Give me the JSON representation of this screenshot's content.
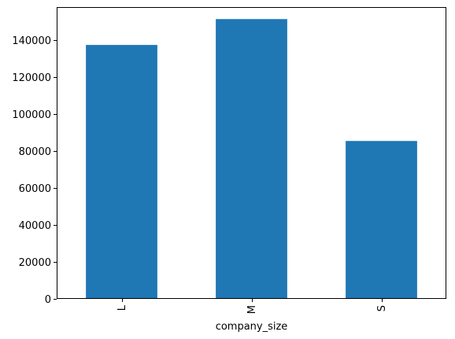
{
  "chart_data": {
    "type": "bar",
    "title": "",
    "xlabel": "company_size",
    "ylabel": "",
    "categories": [
      "L",
      "M",
      "S"
    ],
    "series": [
      {
        "values": [
          137500,
          151500,
          85500
        ]
      }
    ],
    "ylim": [
      0,
      158000
    ],
    "yticks": [
      0,
      20000,
      40000,
      60000,
      80000,
      100000,
      120000,
      140000
    ],
    "ytick_labels": [
      "0",
      "20000",
      "40000",
      "60000",
      "80000",
      "100000",
      "120000",
      "140000"
    ],
    "xtick_rotation": "vertical",
    "grid": false,
    "legend": "none",
    "bar_color": "#1f77b4"
  }
}
